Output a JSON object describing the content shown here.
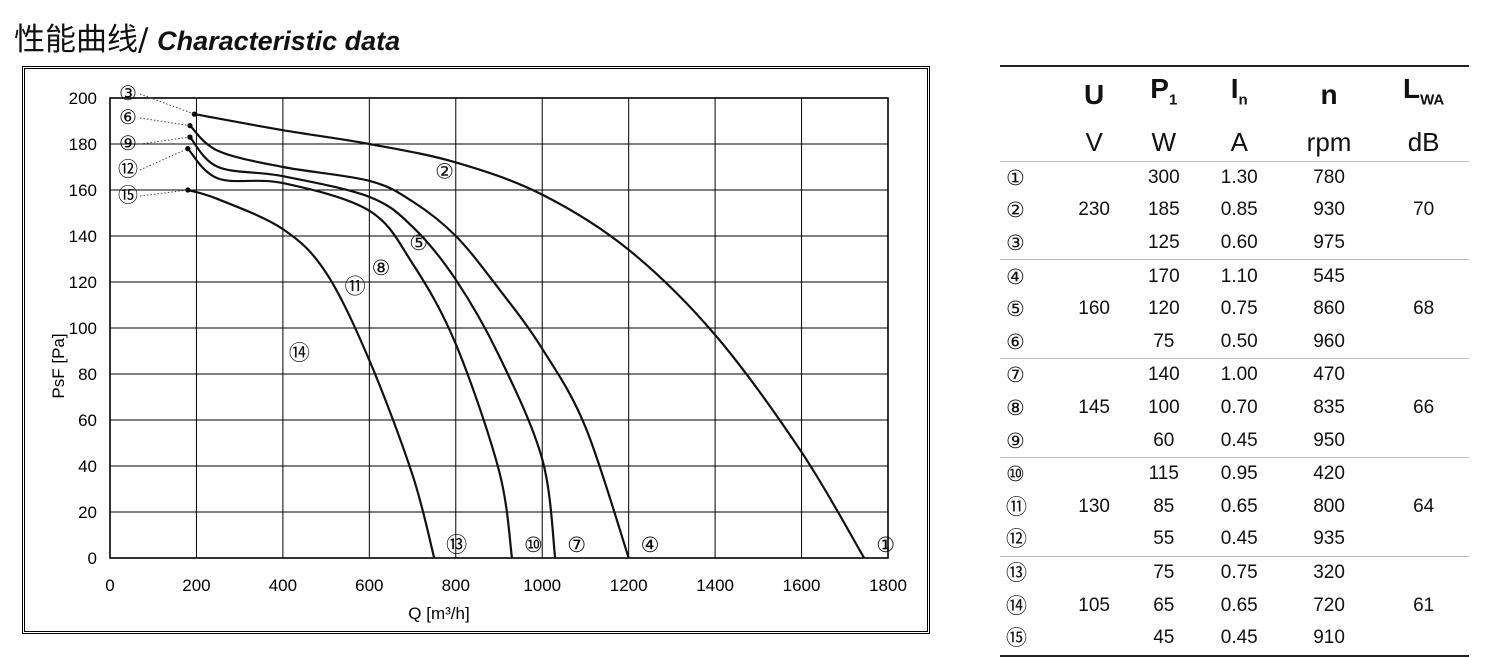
{
  "header": {
    "title_cn": "性能曲线/",
    "title_en": "Characteristic data"
  },
  "chart_data": {
    "type": "line",
    "xlabel": "Q [m³/h]",
    "ylabel": "PsF [Pa]",
    "xlim": [
      0,
      1800
    ],
    "ylim": [
      0,
      200
    ],
    "x_ticks": [
      "0",
      "200",
      "400",
      "600",
      "800",
      "1000",
      "1200",
      "1400",
      "1600",
      "1800"
    ],
    "y_ticks": [
      "0",
      "20",
      "40",
      "60",
      "80",
      "100",
      "120",
      "140",
      "160",
      "180",
      "200"
    ],
    "grid": true,
    "series": [
      {
        "name": "①",
        "points": [
          [
            195,
            193
          ],
          [
            400,
            186
          ],
          [
            600,
            180
          ],
          [
            800,
            172
          ],
          [
            1000,
            158
          ],
          [
            1200,
            134
          ],
          [
            1400,
            97
          ],
          [
            1600,
            46
          ],
          [
            1745,
            0
          ]
        ]
      },
      {
        "name": "④",
        "points": [
          [
            185,
            188
          ],
          [
            250,
            177
          ],
          [
            400,
            170
          ],
          [
            600,
            164
          ],
          [
            700,
            155
          ],
          [
            800,
            140
          ],
          [
            900,
            117
          ],
          [
            1000,
            91
          ],
          [
            1100,
            57
          ],
          [
            1200,
            0
          ]
        ]
      },
      {
        "name": "⑦",
        "points": [
          [
            185,
            183
          ],
          [
            250,
            170
          ],
          [
            400,
            166
          ],
          [
            600,
            157
          ],
          [
            700,
            144
          ],
          [
            800,
            121
          ],
          [
            900,
            88
          ],
          [
            1000,
            43
          ],
          [
            1030,
            0
          ]
        ]
      },
      {
        "name": "⑩",
        "points": [
          [
            180,
            178
          ],
          [
            250,
            165
          ],
          [
            400,
            163
          ],
          [
            600,
            151
          ],
          [
            700,
            128
          ],
          [
            800,
            93
          ],
          [
            900,
            38
          ],
          [
            930,
            0
          ]
        ]
      },
      {
        "name": "⑬",
        "points": [
          [
            180,
            160
          ],
          [
            250,
            156
          ],
          [
            400,
            143
          ],
          [
            500,
            124
          ],
          [
            600,
            86
          ],
          [
            700,
            36
          ],
          [
            750,
            0
          ]
        ]
      }
    ],
    "callouts": [
      "②",
      "⑤",
      "⑧",
      "⑪",
      "⑭",
      "③",
      "⑥",
      "⑨",
      "⑫",
      "⑮"
    ]
  },
  "table": {
    "headers": [
      {
        "main": "U",
        "sub": ""
      },
      {
        "main": "P",
        "sub": "1"
      },
      {
        "main": "I",
        "sub": "n"
      },
      {
        "main": "n",
        "sub": ""
      },
      {
        "main": "L",
        "sub": "WA"
      }
    ],
    "units": [
      "V",
      "W",
      "A",
      "rpm",
      "dB"
    ],
    "groups": [
      {
        "u": "230",
        "lwa": "70",
        "rows": [
          {
            "num": "①",
            "p": "300",
            "i": "1.30",
            "n": "780"
          },
          {
            "num": "②",
            "p": "185",
            "i": "0.85",
            "n": "930"
          },
          {
            "num": "③",
            "p": "125",
            "i": "0.60",
            "n": "975"
          }
        ]
      },
      {
        "u": "160",
        "lwa": "68",
        "rows": [
          {
            "num": "④",
            "p": "170",
            "i": "1.10",
            "n": "545"
          },
          {
            "num": "⑤",
            "p": "120",
            "i": "0.75",
            "n": "860"
          },
          {
            "num": "⑥",
            "p": "75",
            "i": "0.50",
            "n": "960"
          }
        ]
      },
      {
        "u": "145",
        "lwa": "66",
        "rows": [
          {
            "num": "⑦",
            "p": "140",
            "i": "1.00",
            "n": "470"
          },
          {
            "num": "⑧",
            "p": "100",
            "i": "0.70",
            "n": "835"
          },
          {
            "num": "⑨",
            "p": "60",
            "i": "0.45",
            "n": "950"
          }
        ]
      },
      {
        "u": "130",
        "lwa": "64",
        "rows": [
          {
            "num": "⑩",
            "p": "115",
            "i": "0.95",
            "n": "420"
          },
          {
            "num": "⑪",
            "p": "85",
            "i": "0.65",
            "n": "800"
          },
          {
            "num": "⑫",
            "p": "55",
            "i": "0.45",
            "n": "935"
          }
        ]
      },
      {
        "u": "105",
        "lwa": "61",
        "rows": [
          {
            "num": "⑬",
            "p": "75",
            "i": "0.75",
            "n": "320"
          },
          {
            "num": "⑭",
            "p": "65",
            "i": "0.65",
            "n": "720"
          },
          {
            "num": "⑮",
            "p": "45",
            "i": "0.45",
            "n": "910"
          }
        ]
      }
    ]
  }
}
